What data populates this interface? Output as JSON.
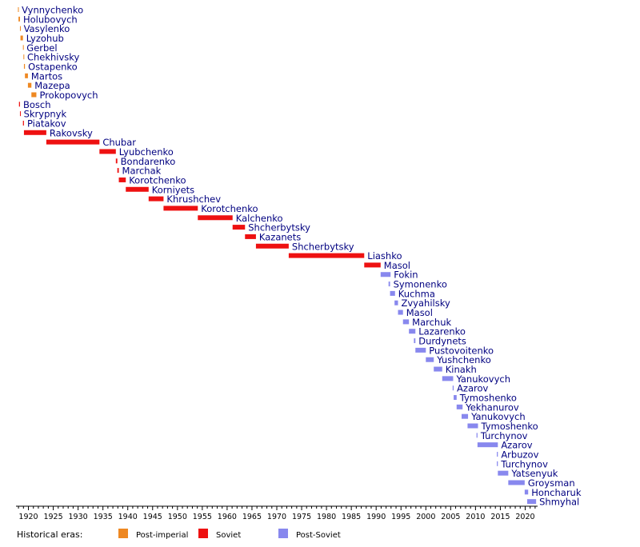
{
  "chart_data": {
    "type": "bar",
    "orientation": "horizontal-timeline",
    "x_ticks": [
      1920,
      1925,
      1930,
      1935,
      1940,
      1945,
      1950,
      1955,
      1960,
      1965,
      1970,
      1975,
      1980,
      1985,
      1990,
      1995,
      2000,
      2005,
      2010,
      2015,
      2020
    ],
    "xlim": [
      1917.5,
      2022.5
    ],
    "eras": [
      {
        "key": "post_imperial",
        "label": "Post-imperial",
        "color": "#ee8822"
      },
      {
        "key": "soviet",
        "label": "Soviet",
        "color": "#ee1111"
      },
      {
        "key": "post_soviet",
        "label": "Post-Soviet",
        "color": "#8888ee"
      }
    ],
    "legend_title": "Historical eras:",
    "series": [
      {
        "name": "Vynnychenko",
        "start": 1917.9,
        "end": 1918.0,
        "era": "post_imperial"
      },
      {
        "name": "Holubovych",
        "start": 1918.0,
        "end": 1918.3,
        "era": "post_imperial"
      },
      {
        "name": "Vasylenko",
        "start": 1918.3,
        "end": 1918.4,
        "era": "post_imperial"
      },
      {
        "name": "Lyzohub",
        "start": 1918.4,
        "end": 1918.9,
        "era": "post_imperial"
      },
      {
        "name": "Gerbel",
        "start": 1918.9,
        "end": 1919.0,
        "era": "post_imperial"
      },
      {
        "name": "Chekhivsky",
        "start": 1919.0,
        "end": 1919.1,
        "era": "post_imperial"
      },
      {
        "name": "Ostapenko",
        "start": 1919.1,
        "end": 1919.3,
        "era": "post_imperial"
      },
      {
        "name": "Martos",
        "start": 1919.3,
        "end": 1919.9,
        "era": "post_imperial"
      },
      {
        "name": "Mazepa",
        "start": 1919.9,
        "end": 1920.6,
        "era": "post_imperial"
      },
      {
        "name": "Prokopovych",
        "start": 1920.6,
        "end": 1921.6,
        "era": "post_imperial"
      },
      {
        "name": "Bosch",
        "start": 1918.1,
        "end": 1918.3,
        "era": "soviet"
      },
      {
        "name": "Skrypnyk",
        "start": 1918.3,
        "end": 1918.4,
        "era": "soviet"
      },
      {
        "name": "Piatakov",
        "start": 1918.9,
        "end": 1919.1,
        "era": "soviet"
      },
      {
        "name": "Rakovsky",
        "start": 1919.1,
        "end": 1923.6,
        "era": "soviet"
      },
      {
        "name": "Chubar",
        "start": 1923.6,
        "end": 1934.3,
        "era": "soviet"
      },
      {
        "name": "Lyubchenko",
        "start": 1934.3,
        "end": 1937.6,
        "era": "soviet"
      },
      {
        "name": "Bondarenko",
        "start": 1937.6,
        "end": 1937.9,
        "era": "soviet"
      },
      {
        "name": "Marchak",
        "start": 1937.9,
        "end": 1938.2,
        "era": "soviet"
      },
      {
        "name": "Korotchenko",
        "start": 1938.2,
        "end": 1939.6,
        "era": "soviet"
      },
      {
        "name": "Korniyets",
        "start": 1939.6,
        "end": 1944.2,
        "era": "soviet"
      },
      {
        "name": "Khrushchev",
        "start": 1944.2,
        "end": 1947.2,
        "era": "soviet"
      },
      {
        "name": "Korotchenko",
        "start": 1947.2,
        "end": 1954.1,
        "era": "soviet"
      },
      {
        "name": "Kalchenko",
        "start": 1954.1,
        "end": 1961.1,
        "era": "soviet"
      },
      {
        "name": "Shcherbytsky",
        "start": 1961.1,
        "end": 1963.6,
        "era": "soviet"
      },
      {
        "name": "Kazanets",
        "start": 1963.6,
        "end": 1965.8,
        "era": "soviet"
      },
      {
        "name": "Shcherbytsky",
        "start": 1965.8,
        "end": 1972.4,
        "era": "soviet"
      },
      {
        "name": "Liashko",
        "start": 1972.4,
        "end": 1987.6,
        "era": "soviet"
      },
      {
        "name": "Masol",
        "start": 1987.6,
        "end": 1990.9,
        "era": "soviet"
      },
      {
        "name": "Fokin",
        "start": 1990.9,
        "end": 1992.9,
        "era": "post_soviet"
      },
      {
        "name": "Symonenko",
        "start": 1992.5,
        "end": 1992.8,
        "era": "post_soviet"
      },
      {
        "name": "Kuchma",
        "start": 1992.8,
        "end": 1993.8,
        "era": "post_soviet"
      },
      {
        "name": "Zvyahilsky",
        "start": 1993.7,
        "end": 1994.4,
        "era": "post_soviet"
      },
      {
        "name": "Masol",
        "start": 1994.4,
        "end": 1995.4,
        "era": "post_soviet"
      },
      {
        "name": "Marchuk",
        "start": 1995.4,
        "end": 1996.6,
        "era": "post_soviet"
      },
      {
        "name": "Lazarenko",
        "start": 1996.6,
        "end": 1997.9,
        "era": "post_soviet"
      },
      {
        "name": "Durdynets",
        "start": 1997.6,
        "end": 1997.9,
        "era": "post_soviet"
      },
      {
        "name": "Pustovoitenko",
        "start": 1997.9,
        "end": 2000.0,
        "era": "post_soviet"
      },
      {
        "name": "Yushchenko",
        "start": 2000.0,
        "end": 2001.6,
        "era": "post_soviet"
      },
      {
        "name": "Kinakh",
        "start": 2001.6,
        "end": 2003.3,
        "era": "post_soviet"
      },
      {
        "name": "Yanukovych",
        "start": 2003.3,
        "end": 2005.5,
        "era": "post_soviet"
      },
      {
        "name": "Azarov",
        "start": 2005.4,
        "end": 2005.6,
        "era": "post_soviet"
      },
      {
        "name": "Tymoshenko",
        "start": 2005.6,
        "end": 2006.2,
        "era": "post_soviet"
      },
      {
        "name": "Yekhanurov",
        "start": 2006.2,
        "end": 2007.4,
        "era": "post_soviet"
      },
      {
        "name": "Yanukovych",
        "start": 2007.2,
        "end": 2008.5,
        "era": "post_soviet"
      },
      {
        "name": "Tymoshenko",
        "start": 2008.4,
        "end": 2010.5,
        "era": "post_soviet"
      },
      {
        "name": "Turchynov",
        "start": 2010.2,
        "end": 2010.4,
        "era": "post_soviet"
      },
      {
        "name": "Azarov",
        "start": 2010.4,
        "end": 2014.5,
        "era": "post_soviet"
      },
      {
        "name": "Arbuzov",
        "start": 2014.3,
        "end": 2014.5,
        "era": "post_soviet"
      },
      {
        "name": "Turchynov",
        "start": 2014.3,
        "end": 2014.5,
        "era": "post_soviet"
      },
      {
        "name": "Yatsenyuk",
        "start": 2014.5,
        "end": 2016.6,
        "era": "post_soviet"
      },
      {
        "name": "Groysman",
        "start": 2016.6,
        "end": 2019.9,
        "era": "post_soviet"
      },
      {
        "name": "Honcharuk",
        "start": 2019.9,
        "end": 2020.6,
        "era": "post_soviet"
      },
      {
        "name": "Shmyhal",
        "start": 2020.4,
        "end": 2022.2,
        "era": "post_soviet"
      }
    ]
  }
}
